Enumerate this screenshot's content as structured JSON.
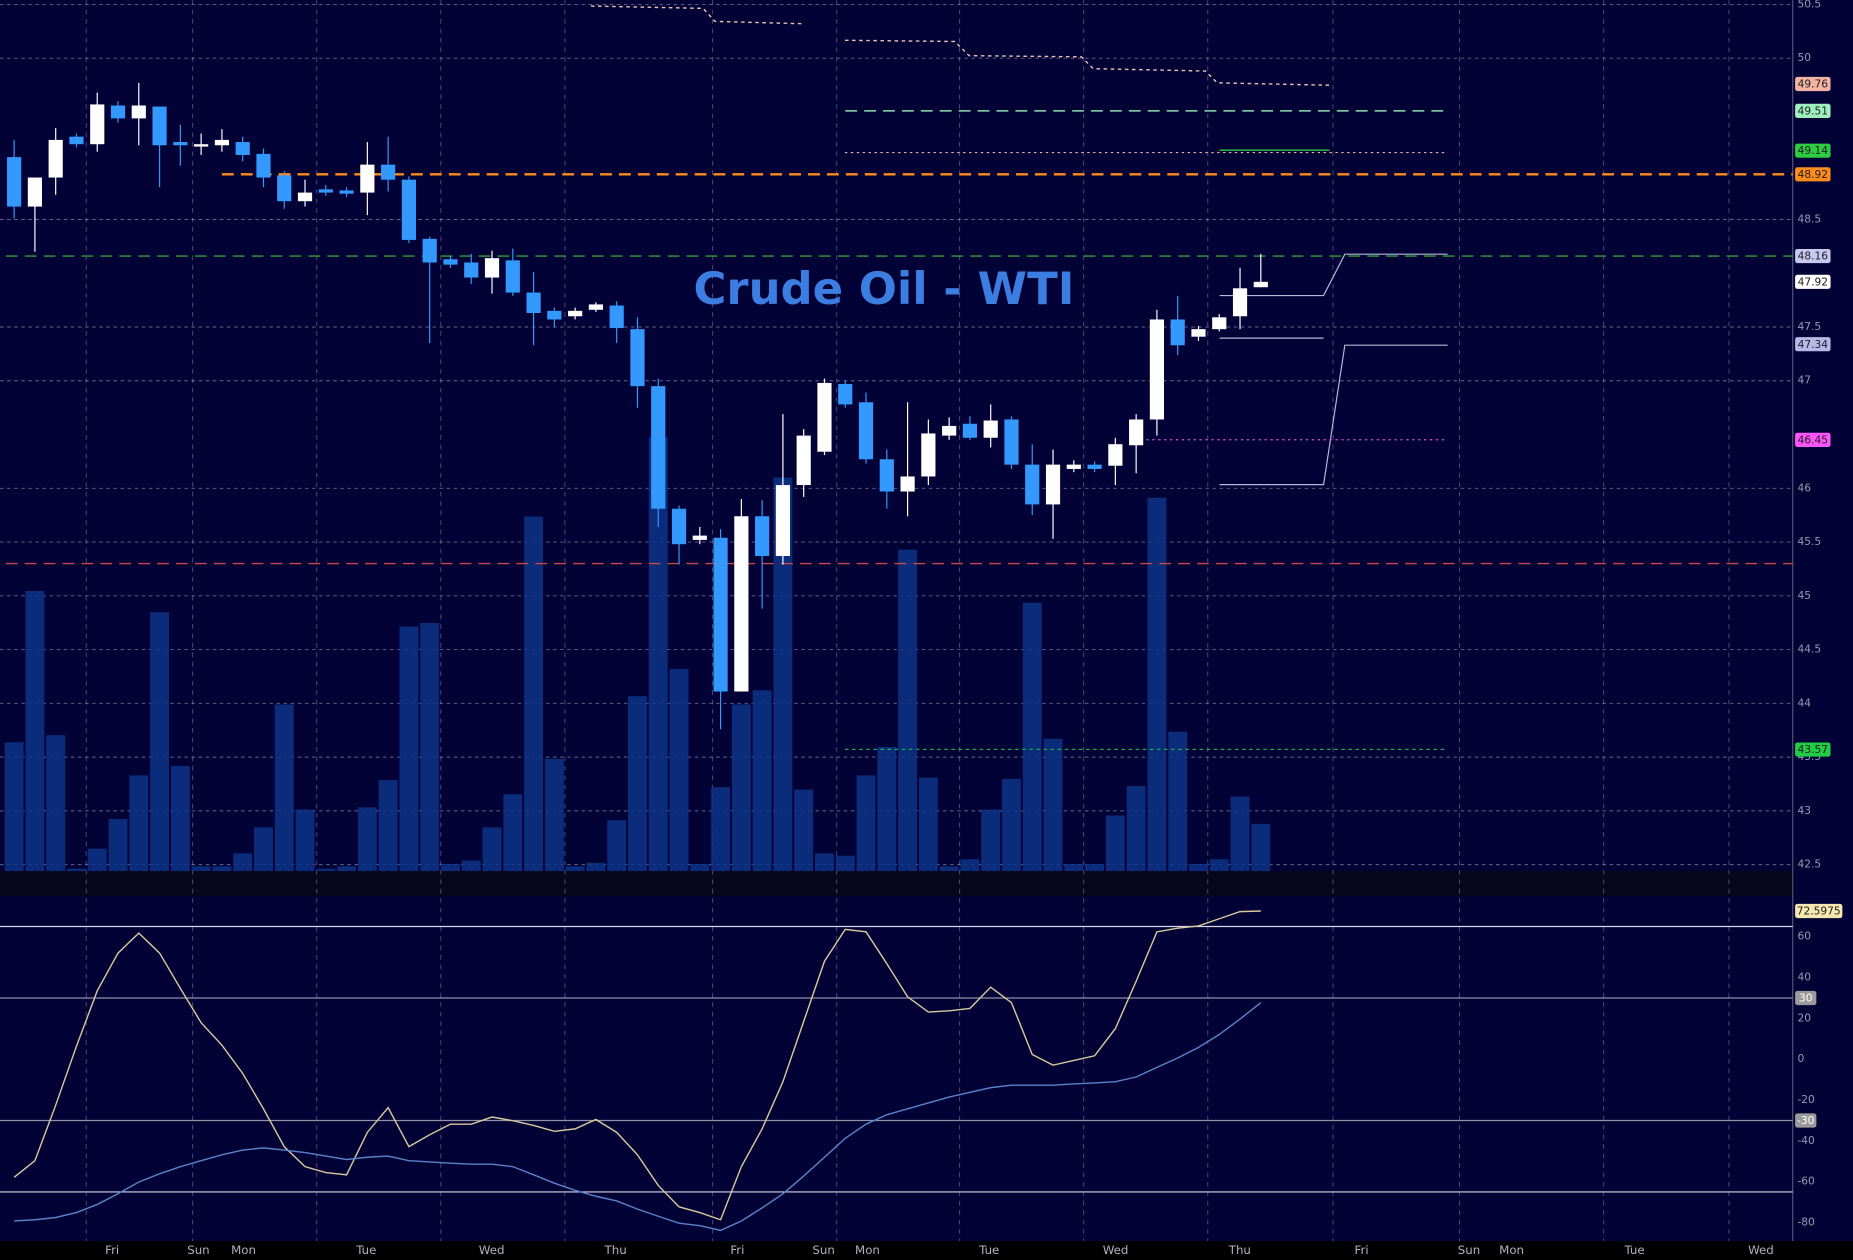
{
  "chart_data": [
    {
      "type": "candlestick",
      "title": "Crude Oil - WTI",
      "xlim": [
        -0.68,
        85.6
      ],
      "xticks": [
        {
          "value": 4.72,
          "label": "Fri"
        },
        {
          "value": 8.87,
          "label": "Sun"
        },
        {
          "value": 11.04,
          "label": "Mon"
        },
        {
          "value": 16.95,
          "label": "Tue"
        },
        {
          "value": 22.98,
          "label": "Wed"
        },
        {
          "value": 28.95,
          "label": "Thu"
        },
        {
          "value": 34.81,
          "label": "Fri"
        },
        {
          "value": 38.96,
          "label": "Sun"
        },
        {
          "value": 41.07,
          "label": "Mon"
        },
        {
          "value": 46.93,
          "label": "Tue"
        },
        {
          "value": 53.01,
          "label": "Wed"
        },
        {
          "value": 58.99,
          "label": "Thu"
        },
        {
          "value": 64.85,
          "label": "Fri"
        },
        {
          "value": 70.02,
          "label": "Sun"
        },
        {
          "value": 72.07,
          "label": "Mon"
        },
        {
          "value": 77.99,
          "label": "Tue"
        },
        {
          "value": 84.07,
          "label": "Wed"
        }
      ],
      "ylim": [
        42.44,
        50.54
      ],
      "yticks": [
        50.5,
        50,
        48.5,
        47.5,
        47,
        46,
        45.5,
        45,
        44.5,
        44,
        43.5,
        43,
        42.5
      ],
      "grid": true,
      "up_color": "#ffffff",
      "down_color": "#3399ff",
      "volume_color": "#0c3487",
      "open": [
        49.08,
        48.62,
        48.89,
        49.27,
        49.2,
        49.56,
        49.44,
        49.55,
        49.22,
        49.18,
        49.19,
        49.22,
        49.11,
        48.91,
        48.67,
        48.78,
        48.77,
        48.75,
        49.01,
        48.87,
        48.32,
        48.13,
        48.1,
        47.96,
        48.12,
        47.82,
        47.65,
        47.6,
        47.66,
        47.7,
        47.48,
        46.95,
        45.81,
        45.52,
        45.54,
        44.11,
        45.74,
        45.37,
        46.03,
        46.34,
        46.97,
        46.8,
        46.27,
        45.97,
        46.11,
        46.49,
        46.6,
        46.47,
        46.64,
        46.22,
        45.85,
        46.18,
        46.22,
        46.21,
        46.4,
        46.64,
        47.57,
        47.41,
        47.48,
        47.6,
        47.87
      ],
      "high": [
        49.24,
        48.89,
        49.35,
        49.3,
        49.68,
        49.6,
        49.77,
        49.55,
        49.38,
        49.3,
        49.34,
        49.27,
        49.16,
        48.95,
        48.87,
        48.82,
        48.8,
        49.22,
        49.27,
        48.9,
        48.34,
        48.16,
        48.18,
        48.21,
        48.23,
        48.01,
        47.68,
        47.68,
        47.73,
        47.74,
        47.59,
        47.02,
        45.84,
        45.64,
        45.62,
        45.9,
        45.89,
        46.69,
        46.55,
        47.02,
        47.0,
        46.89,
        46.36,
        46.8,
        46.64,
        46.66,
        46.67,
        46.78,
        46.67,
        46.41,
        46.36,
        46.26,
        46.25,
        46.47,
        46.69,
        47.66,
        47.79,
        47.51,
        47.62,
        48.05,
        48.18
      ],
      "low": [
        48.51,
        48.2,
        48.73,
        49.17,
        49.13,
        49.4,
        49.19,
        48.8,
        49.0,
        49.1,
        49.13,
        49.04,
        48.8,
        48.6,
        48.62,
        48.72,
        48.71,
        48.54,
        48.76,
        48.28,
        47.35,
        48.05,
        47.9,
        47.81,
        47.79,
        47.33,
        47.5,
        47.57,
        47.64,
        47.35,
        46.75,
        45.64,
        45.29,
        45.48,
        43.76,
        44.11,
        44.88,
        45.29,
        45.92,
        46.31,
        46.75,
        46.23,
        45.81,
        45.74,
        46.03,
        46.45,
        46.45,
        46.38,
        46.18,
        45.75,
        45.53,
        46.15,
        46.15,
        46.03,
        46.14,
        46.49,
        47.24,
        47.37,
        47.46,
        47.48,
        47.87
      ],
      "close": [
        48.62,
        48.89,
        49.24,
        49.2,
        49.57,
        49.44,
        49.56,
        49.19,
        49.19,
        49.2,
        49.24,
        49.1,
        48.89,
        48.67,
        48.75,
        48.75,
        48.74,
        49.01,
        48.87,
        48.31,
        48.1,
        48.08,
        47.96,
        48.14,
        47.82,
        47.63,
        47.57,
        47.65,
        47.71,
        47.49,
        46.95,
        45.81,
        45.48,
        45.56,
        44.11,
        45.74,
        45.37,
        46.03,
        46.49,
        46.98,
        46.78,
        46.27,
        45.97,
        46.11,
        46.51,
        46.58,
        46.47,
        46.63,
        46.22,
        45.85,
        46.22,
        46.22,
        46.18,
        46.41,
        46.64,
        47.57,
        47.33,
        47.48,
        47.59,
        47.86,
        47.92
      ],
      "volume": [
        109,
        237,
        115,
        2,
        19,
        44,
        81,
        219,
        89,
        4,
        4,
        15,
        37,
        141,
        52,
        2,
        4,
        54,
        77,
        207,
        210,
        6,
        9,
        37,
        65,
        300,
        95,
        4,
        7,
        43,
        148,
        367,
        171,
        6,
        71,
        141,
        153,
        333,
        69,
        15,
        13,
        81,
        105,
        272,
        79,
        4,
        10,
        52,
        78,
        227,
        112,
        6,
        6,
        47,
        72,
        316,
        118,
        6,
        10,
        63,
        40
      ],
      "volume_lim": [
        0,
        737
      ],
      "hlines": [
        {
          "value": 48.92,
          "color": "#ff8c1a",
          "start": 10,
          "end": 85.6
        },
        {
          "value": 48.16,
          "color": "#2e9e3a",
          "start": -0.4,
          "end": 85.6
        },
        {
          "value": 45.3,
          "color": "#c84848",
          "start": -0.4,
          "end": 85.6
        },
        {
          "value": 49.51,
          "color": "#8fe0b0",
          "start": 40,
          "end": 69
        }
      ],
      "levels": [
        {
          "value": 49.76,
          "color": "#f3b3a3"
        },
        {
          "value": 49.51,
          "color": "#9ff0bf"
        },
        {
          "value": 49.14,
          "color": "#2ecc40"
        },
        {
          "value": 48.92,
          "color": "#ff8c1a"
        },
        {
          "value": 48.16,
          "color": "#c8c8f0"
        },
        {
          "value": 47.92,
          "color": "#ffffff"
        },
        {
          "value": 47.34,
          "color": "#b8b8e8"
        },
        {
          "value": 46.45,
          "color": "#ff55ff"
        },
        {
          "value": 43.57,
          "color": "#22cc44"
        }
      ]
    },
    {
      "type": "line",
      "xlim": [
        -0.68,
        85.6
      ],
      "ylim": [
        -89,
        80
      ],
      "yticks": [
        60,
        40,
        20,
        0,
        -20,
        -40,
        -60,
        -80
      ],
      "bands": [
        65,
        -65
      ],
      "levels": [
        30,
        -30
      ],
      "series": [
        {
          "color": "#d8c89a",
          "values": [
            -57.8,
            -49.7,
            -22.5,
            6.4,
            33.5,
            52.0,
            61.8,
            52.0,
            34.7,
            17.9,
            6.9,
            -6.9,
            -24.3,
            -42.8,
            -52.6,
            -55.5,
            -56.6,
            -35.8,
            -23.7,
            -42.8,
            -37.0,
            -31.8,
            -31.8,
            -28.3,
            -30.1,
            -32.4,
            -35.3,
            -34.1,
            -29.5,
            -35.8,
            -46.8,
            -61.8,
            -72.3,
            -75.1,
            -78.6,
            -52.6,
            -34.1,
            -11.0,
            18.5,
            48.0,
            63.6,
            62.4,
            46.8,
            30.6,
            23.1,
            23.7,
            24.9,
            35.3,
            27.7,
            2.3,
            -2.9,
            -0.6,
            1.7,
            15.0,
            38.2,
            62.4,
            64.2,
            65.3,
            68.8,
            72.3,
            72.5975
          ]
        },
        {
          "color": "#5a82c8",
          "values": [
            -79.2,
            -78.6,
            -77.5,
            -75.1,
            -71.1,
            -65.9,
            -60.1,
            -56.1,
            -52.6,
            -49.7,
            -46.8,
            -44.5,
            -43.4,
            -44.5,
            -45.7,
            -47.4,
            -49.1,
            -48.0,
            -47.4,
            -49.7,
            -50.3,
            -50.9,
            -51.4,
            -51.4,
            -52.6,
            -56.6,
            -60.7,
            -64.2,
            -67.1,
            -69.4,
            -73.4,
            -76.9,
            -80.3,
            -81.5,
            -83.8,
            -79.2,
            -72.8,
            -65.9,
            -57.2,
            -48.0,
            -38.7,
            -31.8,
            -27.2,
            -24.3,
            -21.4,
            -18.5,
            -16.2,
            -13.9,
            -12.7,
            -12.7,
            -12.7,
            -12.1,
            -11.6,
            -11.0,
            -8.7,
            -4.0,
            0.6,
            5.8,
            12.1,
            19.7,
            27.7
          ]
        }
      ]
    }
  ]
}
